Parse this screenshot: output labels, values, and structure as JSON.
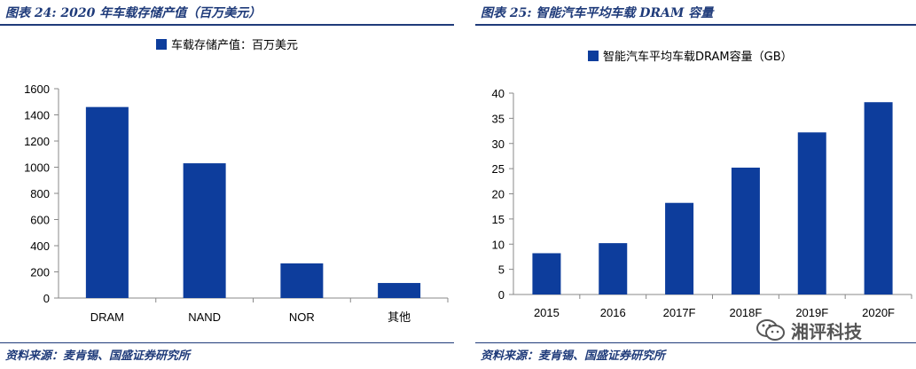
{
  "left_panel": {
    "title": "图表 24:  2020 年车载存储产值（百万美元）",
    "source": "资料来源：麦肯锡、国盛证券研究所"
  },
  "right_panel": {
    "title": "图表 25:  智能汽车平均车载 DRAM 容量",
    "source": "资料来源：麦肯锡、国盛证券研究所"
  },
  "watermark": {
    "text": "湘评科技",
    "icon": "wechat-icon"
  },
  "colors": {
    "bar": "#0d3d9c",
    "title": "#1f3b7a",
    "axis": "#888888"
  },
  "chart_data": [
    {
      "type": "bar",
      "categories": [
        "DRAM",
        "NAND",
        "NOR",
        "其他"
      ],
      "series": [
        {
          "name": "车载存储产值：百万美元",
          "values": [
            1460,
            1030,
            265,
            115
          ]
        }
      ],
      "ylim": [
        0,
        1600
      ],
      "yticks": [
        0,
        200,
        400,
        600,
        800,
        1000,
        1200,
        1400,
        1600
      ],
      "legend": "top-center",
      "grid": false
    },
    {
      "type": "bar",
      "categories": [
        "2015",
        "2016",
        "2017F",
        "2018F",
        "2019F",
        "2020F"
      ],
      "series": [
        {
          "name": "智能汽车平均车载DRAM容量（GB）",
          "values": [
            8.2,
            10.2,
            18.2,
            25.2,
            32.2,
            38.2
          ]
        }
      ],
      "ylim": [
        0,
        40
      ],
      "yticks": [
        0,
        5,
        10,
        15,
        20,
        25,
        30,
        35,
        40
      ],
      "legend": "top-center",
      "grid": false
    }
  ]
}
